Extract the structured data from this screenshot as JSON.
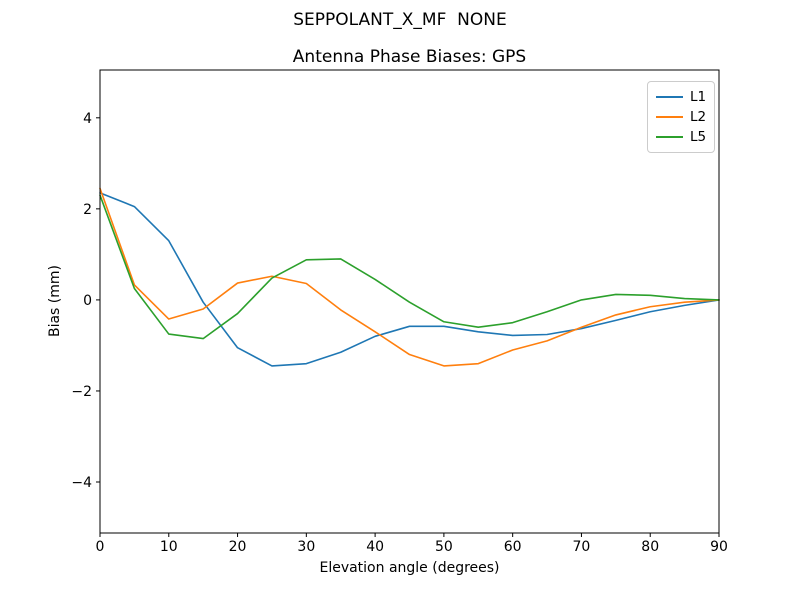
{
  "figure": {
    "suptitle": "SEPPOLANT_X_MF  NONE"
  },
  "chart_data": {
    "type": "line",
    "title": "Antenna Phase Biases: GPS",
    "xlabel": "Elevation angle (degrees)",
    "ylabel": "Bias (mm)",
    "xlim": [
      0,
      90
    ],
    "ylim": [
      -5.12,
      5.05
    ],
    "xticks": [
      0,
      10,
      20,
      30,
      40,
      50,
      60,
      70,
      80,
      90
    ],
    "yticks": [
      -4,
      -2,
      0,
      2,
      4
    ],
    "ytick_labels": [
      "−4",
      "−2",
      "0",
      "2",
      "4"
    ],
    "grid": false,
    "legend_position": "upper right",
    "x": [
      0,
      5,
      10,
      15,
      20,
      25,
      30,
      35,
      40,
      45,
      50,
      55,
      60,
      65,
      70,
      75,
      80,
      85,
      90
    ],
    "series": [
      {
        "name": "L1",
        "color": "#1f77b4",
        "values": [
          2.35,
          2.05,
          1.3,
          -0.05,
          -1.05,
          -1.45,
          -1.4,
          -1.15,
          -0.8,
          -0.58,
          -0.58,
          -0.7,
          -0.78,
          -0.76,
          -0.63,
          -0.45,
          -0.26,
          -0.12,
          0.0
        ]
      },
      {
        "name": "L2",
        "color": "#ff7f0e",
        "values": [
          2.45,
          0.33,
          -0.42,
          -0.2,
          0.37,
          0.52,
          0.36,
          -0.22,
          -0.7,
          -1.2,
          -1.45,
          -1.4,
          -1.1,
          -0.9,
          -0.6,
          -0.33,
          -0.15,
          -0.05,
          0.0
        ]
      },
      {
        "name": "L5",
        "color": "#2ca02c",
        "values": [
          2.3,
          0.25,
          -0.75,
          -0.85,
          -0.3,
          0.48,
          0.88,
          0.9,
          0.45,
          -0.05,
          -0.48,
          -0.6,
          -0.5,
          -0.26,
          0.0,
          0.12,
          0.1,
          0.03,
          0.0
        ]
      }
    ]
  }
}
